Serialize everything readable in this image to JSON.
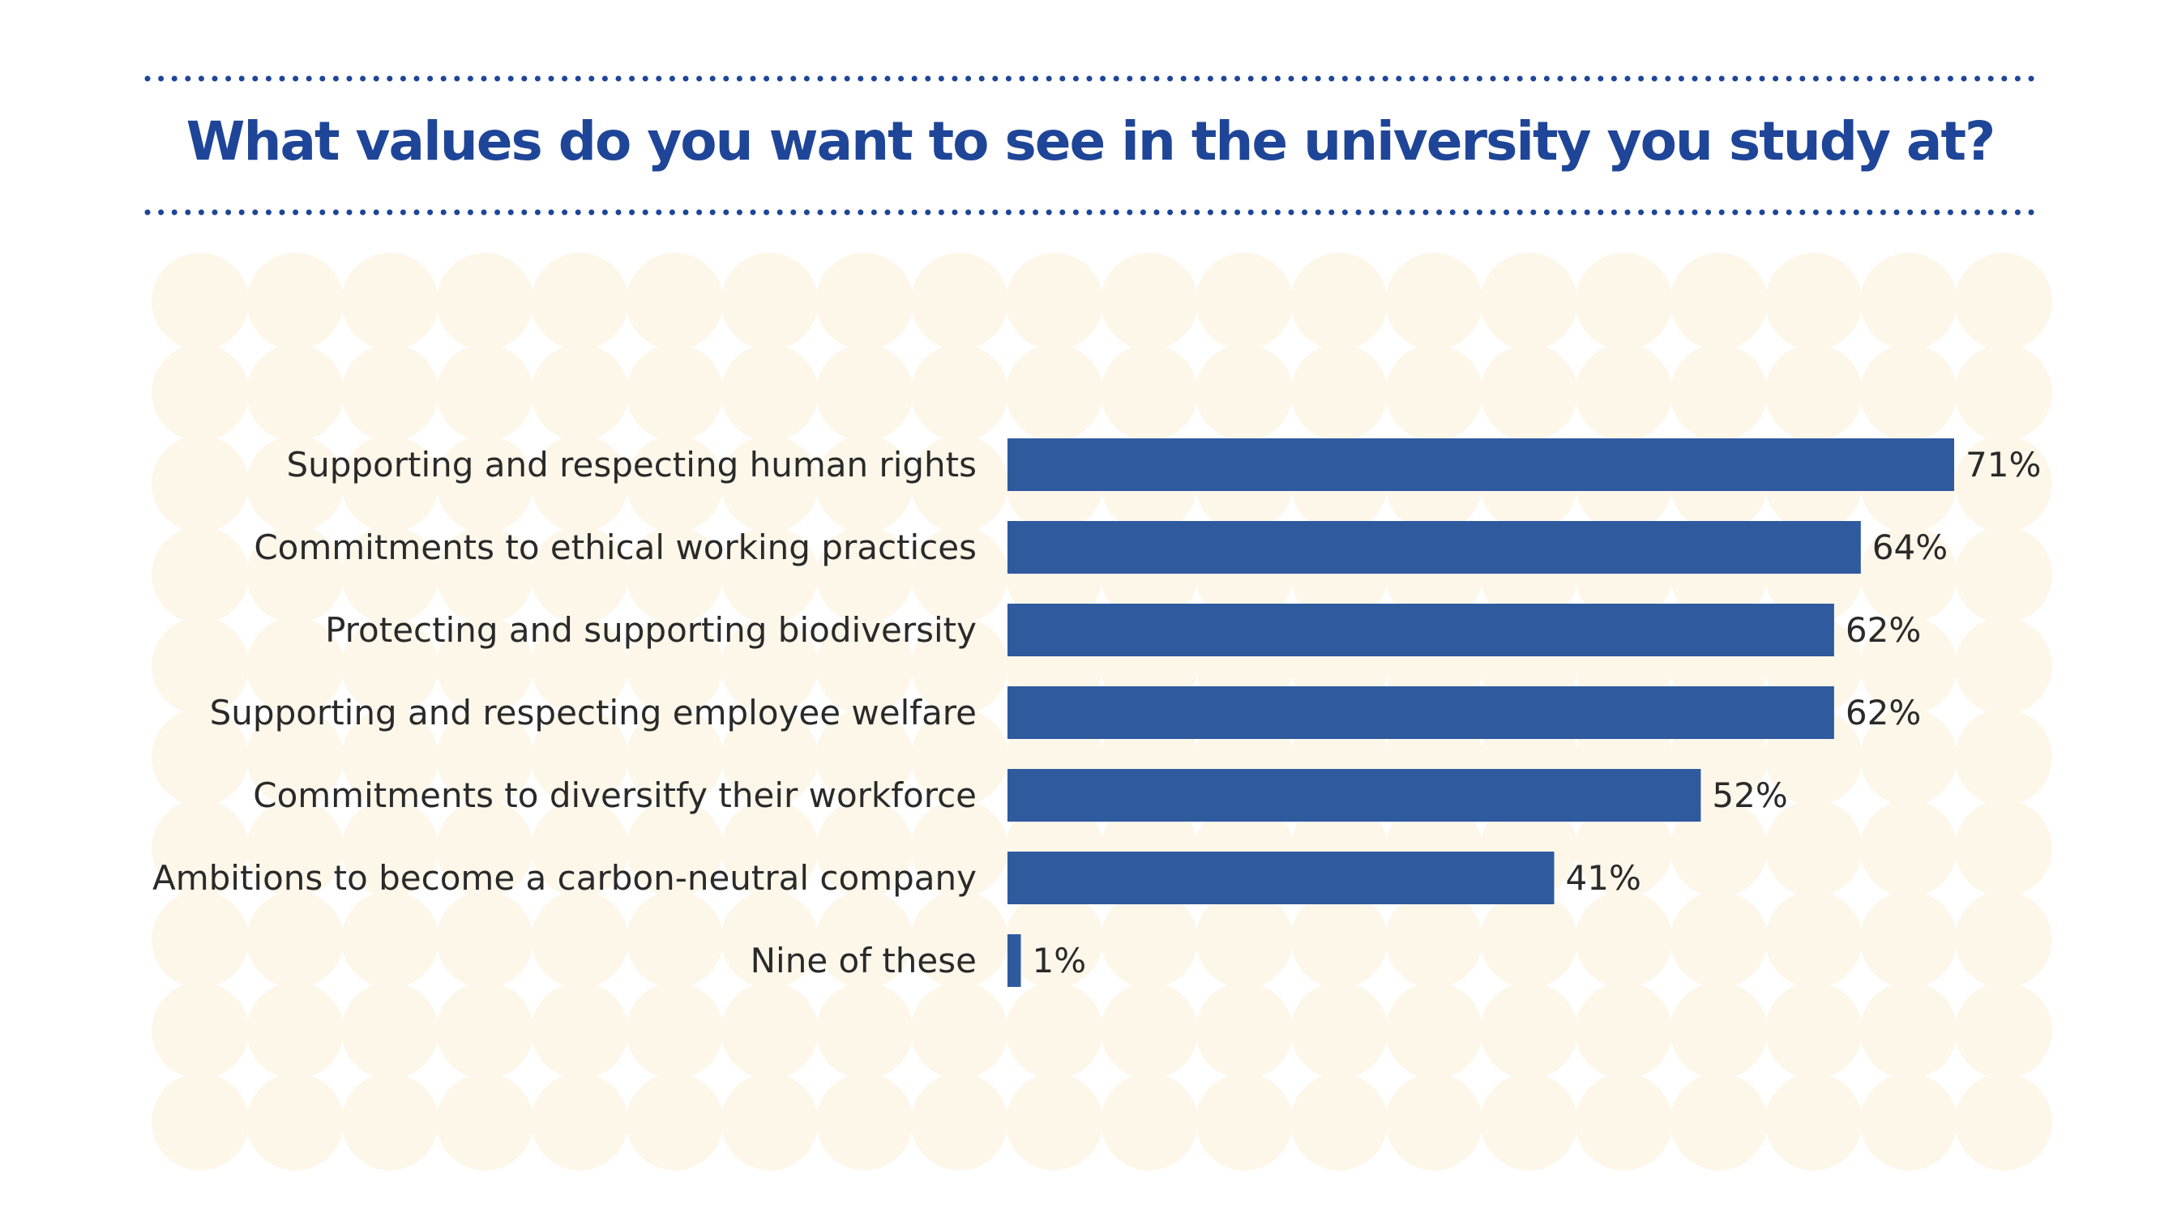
{
  "chart_data": {
    "type": "bar",
    "orientation": "horizontal",
    "title": "What values do you want to see in the university you study at?",
    "categories": [
      "Supporting and respecting human rights",
      "Commitments to ethical working practices",
      "Protecting and supporting biodiversity",
      "Supporting and respecting employee welfare",
      "Commitments to diversitfy their workforce",
      "Ambitions to become a carbon-neutral company",
      "Nine of these"
    ],
    "values": [
      71,
      64,
      62,
      62,
      52,
      41,
      1
    ],
    "value_labels": [
      "71%",
      "64%",
      "62%",
      "62%",
      "52%",
      "41%",
      "1%"
    ],
    "xlabel": "",
    "ylabel": "",
    "xlim": [
      0,
      71
    ],
    "grid": false,
    "legend": "none"
  },
  "colors": {
    "title": "#1e4597",
    "bar": "#2f5a9e",
    "text": "#2a2a2a",
    "dots": "#1e4597",
    "background_circles": "#fdf7ea"
  }
}
